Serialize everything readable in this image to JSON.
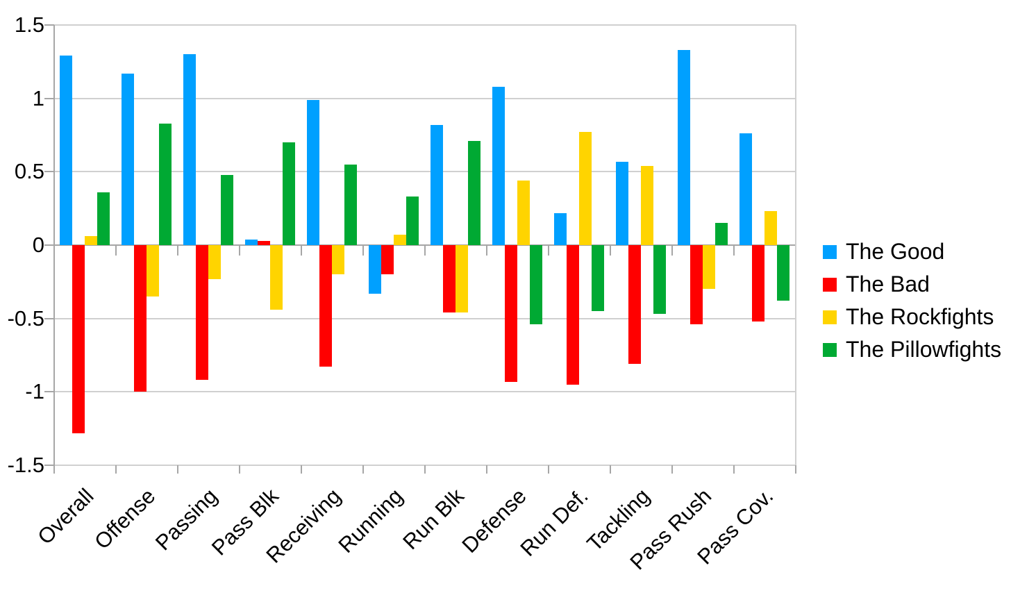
{
  "chart_data": {
    "type": "bar",
    "categories": [
      "Overall",
      "Offense",
      "Passing",
      "Pass Blk",
      "Receiving",
      "Running",
      "Run Blk",
      "Defense",
      "Run Def.",
      "Tackling",
      "Pass Rush",
      "Pass Cov."
    ],
    "series": [
      {
        "name": "The Good",
        "color": "#00A0FF",
        "values": [
          1.29,
          1.17,
          1.3,
          0.04,
          0.99,
          -0.33,
          0.82,
          1.08,
          0.22,
          0.57,
          1.33,
          0.76
        ]
      },
      {
        "name": "The Bad",
        "color": "#FF0000",
        "values": [
          -1.28,
          -1.0,
          -0.92,
          0.03,
          -0.83,
          -0.2,
          -0.46,
          -0.93,
          -0.95,
          -0.81,
          -0.54,
          -0.52
        ]
      },
      {
        "name": "The Rockfights",
        "color": "#FFD400",
        "values": [
          0.06,
          -0.35,
          -0.23,
          -0.44,
          -0.2,
          0.07,
          -0.46,
          0.44,
          0.77,
          0.54,
          -0.3,
          0.23
        ]
      },
      {
        "name": "The Pillowfights",
        "color": "#00A933",
        "values": [
          0.36,
          0.83,
          0.48,
          0.7,
          0.55,
          0.33,
          0.71,
          -0.54,
          -0.45,
          -0.47,
          0.15,
          -0.38
        ]
      }
    ],
    "ylim": [
      -1.5,
      1.5
    ],
    "yticks": [
      {
        "value": 1.5,
        "label": "1.5"
      },
      {
        "value": 1,
        "label": "1"
      },
      {
        "value": 0.5,
        "label": "0.5"
      },
      {
        "value": 0,
        "label": "0"
      },
      {
        "value": -0.5,
        "label": "-0.5"
      },
      {
        "value": -1,
        "label": "-1"
      },
      {
        "value": -1.5,
        "label": "-1.5"
      }
    ],
    "grid": true,
    "legend_position": "right",
    "colors": {
      "grid": "#D0D0D0",
      "axis": "#A6A6A6",
      "background": "#FFFFFF",
      "text": "#000000"
    }
  }
}
